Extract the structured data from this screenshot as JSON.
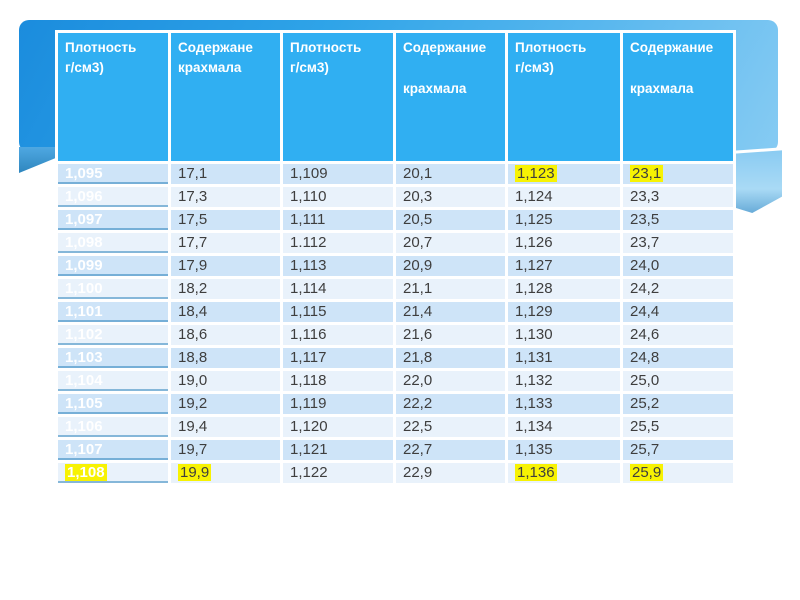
{
  "slide": {
    "type": "presentation-table-slide",
    "colors": {
      "ribbon_blue": "#1E90E0",
      "header_blue": "#30AFF2",
      "row_odd": "#CEE4F8",
      "row_even": "#E9F2FB",
      "highlight_yellow": "#F7F203",
      "text_dark": "#3E3E3E",
      "text_light": "#FFFFFF"
    }
  },
  "table": {
    "headers": [
      "Плотность\nг/см3)",
      "Содержане\nкрахмала",
      "Плотность\nг/см3)",
      "Содержание\n\nкрахмала",
      "Плотность\nг/см3)",
      "Содержание\n\nкрахмала"
    ],
    "rows": [
      {
        "cells": [
          "1,095",
          "17,1",
          "1,109",
          "20,1",
          "1,123",
          "23,1"
        ],
        "highlights": [
          4,
          5
        ]
      },
      {
        "cells": [
          "1,096",
          "17,3",
          "1,110",
          "20,3",
          "1,124",
          "23,3"
        ],
        "highlights": []
      },
      {
        "cells": [
          "1,097",
          "17,5",
          "1,111",
          "20,5",
          "1,125",
          "23,5"
        ],
        "highlights": []
      },
      {
        "cells": [
          "1,098",
          "17,7",
          "1.112",
          "20,7",
          "1,126",
          "23,7"
        ],
        "highlights": []
      },
      {
        "cells": [
          "1,099",
          "17,9",
          "1,113",
          "20,9",
          "1,127",
          "24,0"
        ],
        "highlights": []
      },
      {
        "cells": [
          "1,100",
          "18,2",
          "1,114",
          "21,1",
          "1,128",
          "24,2"
        ],
        "highlights": []
      },
      {
        "cells": [
          "1,101",
          "18,4",
          "1,115",
          "21,4",
          "1,129",
          "24,4"
        ],
        "highlights": []
      },
      {
        "cells": [
          "1,102",
          "18,6",
          "1,116",
          "21,6",
          "1,130",
          "24,6"
        ],
        "highlights": []
      },
      {
        "cells": [
          "1,103",
          "18,8",
          "1,117",
          "21,8",
          "1,131",
          "24,8"
        ],
        "highlights": []
      },
      {
        "cells": [
          "1,104",
          "19,0",
          "1,118",
          "22,0",
          "1,132",
          "25,0"
        ],
        "highlights": []
      },
      {
        "cells": [
          "1,105",
          "19,2",
          "1,119",
          "22,2",
          "1,133",
          "25,2"
        ],
        "highlights": []
      },
      {
        "cells": [
          "1,106",
          "19,4",
          "1,120",
          "22,5",
          "1,134",
          "25,5"
        ],
        "highlights": []
      },
      {
        "cells": [
          "1,107",
          "19,7",
          "1,121",
          "22,7",
          "1,135",
          "25,7"
        ],
        "highlights": []
      },
      {
        "cells": [
          "1,108",
          "19,9",
          "1,122",
          "22,9",
          "1,136",
          "25,9"
        ],
        "highlights": [
          0,
          1,
          4,
          5
        ]
      }
    ]
  }
}
